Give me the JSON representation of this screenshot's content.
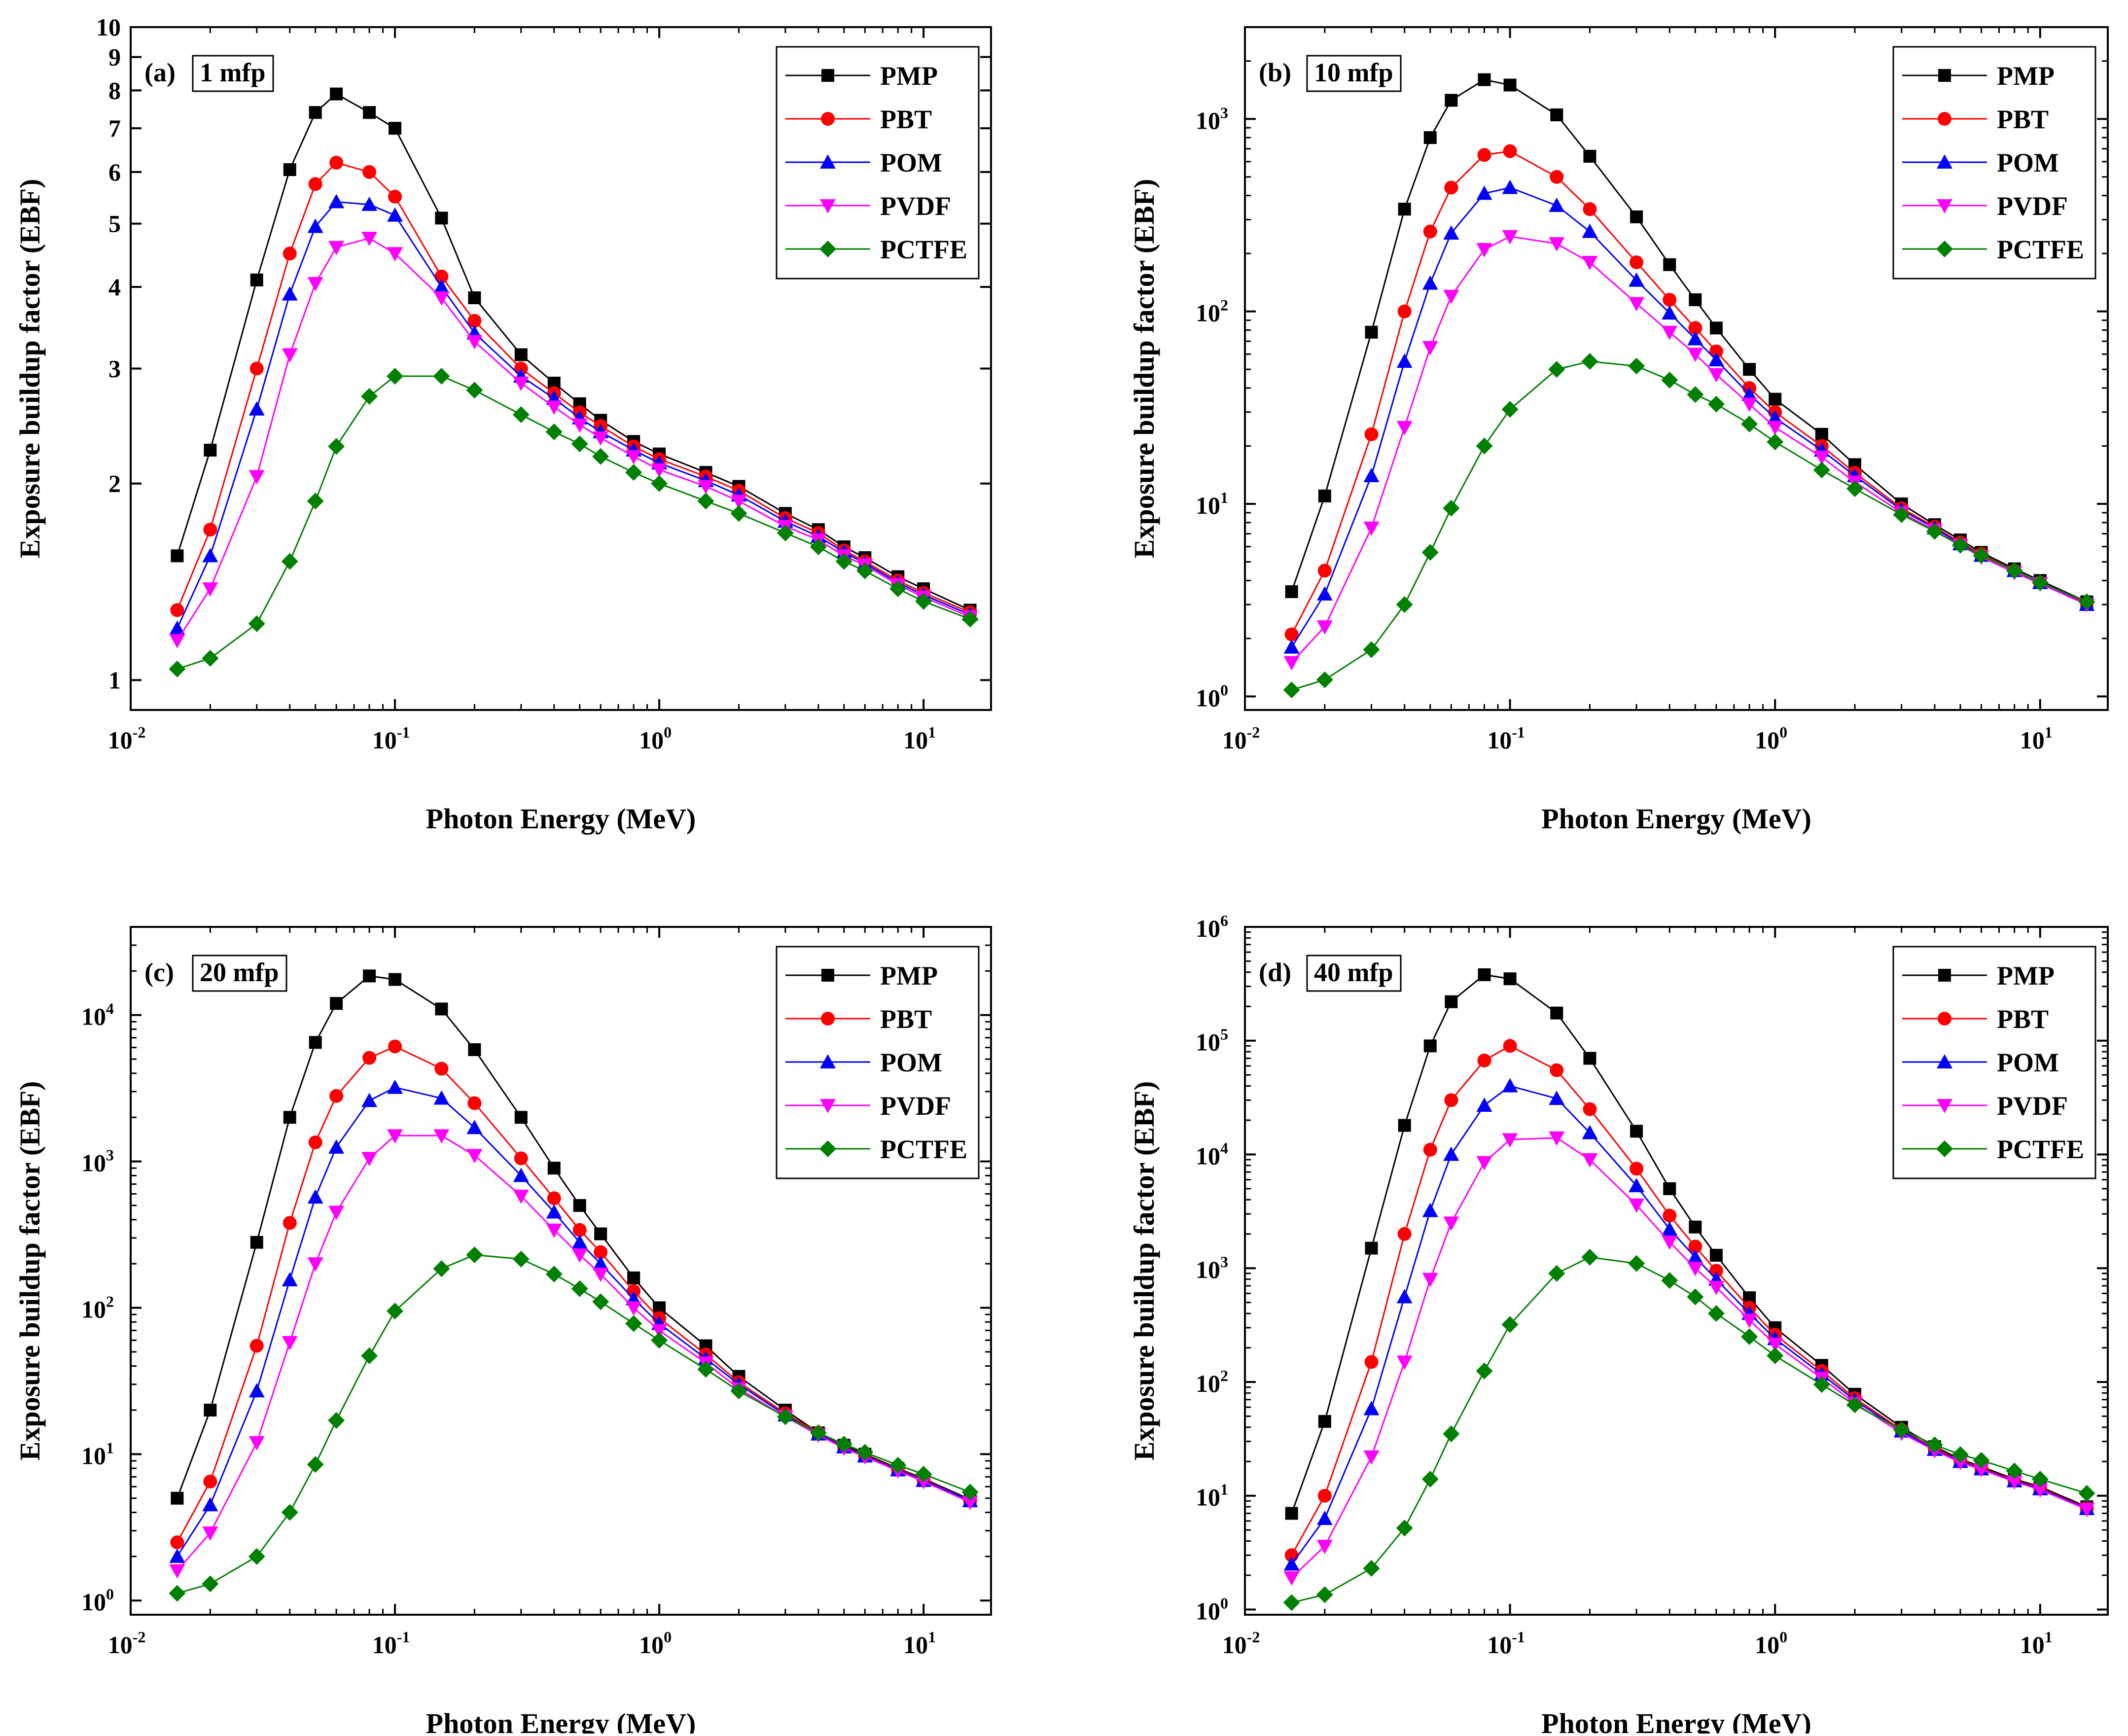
{
  "figure": {
    "x_axis_label": "Photon Energy (MeV)",
    "y_axis_label": "Exposure buildup factor (EBF)"
  },
  "chart_data": [
    {
      "type": "line",
      "panel_letter": "(a)",
      "panel_depth": "1 mfp",
      "x_scale": "log",
      "y_scale": "log",
      "xlim": [
        0.01,
        18
      ],
      "ylim": [
        0.9,
        10
      ],
      "x_ticks": [
        {
          "base": "10",
          "exp": "-2",
          "value": 0.01
        },
        {
          "base": "10",
          "exp": "-1",
          "value": 0.1
        },
        {
          "base": "10",
          "exp": "0",
          "value": 1
        },
        {
          "base": "10",
          "exp": "1",
          "value": 10
        }
      ],
      "y_ticks": [
        {
          "label": "1",
          "value": 1
        },
        {
          "label": "2",
          "value": 2
        },
        {
          "label": "3",
          "value": 3
        },
        {
          "label": "4",
          "value": 4
        },
        {
          "label": "5",
          "value": 5
        },
        {
          "label": "6",
          "value": 6
        },
        {
          "label": "7",
          "value": 7
        },
        {
          "label": "8",
          "value": 8
        },
        {
          "label": "9",
          "value": 9
        },
        {
          "label": "10",
          "value": 10
        }
      ],
      "legend_position": "top-right",
      "x": [
        0.015,
        0.02,
        0.03,
        0.04,
        0.05,
        0.06,
        0.08,
        0.1,
        0.15,
        0.2,
        0.3,
        0.4,
        0.5,
        0.6,
        0.8,
        1,
        1.5,
        2,
        3,
        4,
        5,
        6,
        8,
        10,
        15
      ],
      "series": [
        {
          "name": "PMP",
          "color": "#000000",
          "marker": "square",
          "values": [
            1.55,
            2.25,
            4.1,
            6.05,
            7.4,
            7.9,
            7.4,
            7.0,
            5.1,
            3.85,
            3.15,
            2.85,
            2.65,
            2.5,
            2.32,
            2.22,
            2.08,
            1.98,
            1.8,
            1.7,
            1.6,
            1.54,
            1.44,
            1.38,
            1.28
          ]
        },
        {
          "name": "PBT",
          "color": "#ff0000",
          "marker": "circle",
          "values": [
            1.28,
            1.7,
            3.0,
            4.5,
            5.75,
            6.2,
            6.0,
            5.5,
            4.15,
            3.55,
            3.0,
            2.75,
            2.57,
            2.45,
            2.28,
            2.18,
            2.05,
            1.95,
            1.77,
            1.68,
            1.58,
            1.52,
            1.42,
            1.36,
            1.27
          ]
        },
        {
          "name": "POM",
          "color": "#0000ff",
          "marker": "triangle-up",
          "values": [
            1.2,
            1.55,
            2.6,
            3.9,
            4.95,
            5.4,
            5.35,
            5.15,
            4.0,
            3.4,
            2.92,
            2.7,
            2.52,
            2.4,
            2.25,
            2.15,
            2.02,
            1.92,
            1.75,
            1.66,
            1.57,
            1.51,
            1.41,
            1.35,
            1.26
          ]
        },
        {
          "name": "PVDF",
          "color": "#ff00ff",
          "marker": "triangle-down",
          "values": [
            1.15,
            1.38,
            2.05,
            3.15,
            4.05,
            4.6,
            4.75,
            4.5,
            3.85,
            3.3,
            2.85,
            2.62,
            2.46,
            2.35,
            2.2,
            2.1,
            1.98,
            1.88,
            1.72,
            1.64,
            1.55,
            1.5,
            1.4,
            1.34,
            1.25
          ]
        },
        {
          "name": "PCTFE",
          "color": "#008000",
          "marker": "diamond",
          "values": [
            1.04,
            1.08,
            1.22,
            1.52,
            1.88,
            2.28,
            2.72,
            2.92,
            2.92,
            2.78,
            2.55,
            2.4,
            2.3,
            2.2,
            2.08,
            2.0,
            1.88,
            1.8,
            1.68,
            1.6,
            1.52,
            1.47,
            1.38,
            1.32,
            1.24
          ]
        }
      ]
    },
    {
      "type": "line",
      "panel_letter": "(b)",
      "panel_depth": "10 mfp",
      "x_scale": "log",
      "y_scale": "log",
      "xlim": [
        0.01,
        18
      ],
      "ylim": [
        0.85,
        3000
      ],
      "x_ticks": [
        {
          "base": "10",
          "exp": "-2",
          "value": 0.01
        },
        {
          "base": "10",
          "exp": "-1",
          "value": 0.1
        },
        {
          "base": "10",
          "exp": "0",
          "value": 1
        },
        {
          "base": "10",
          "exp": "1",
          "value": 10
        }
      ],
      "y_ticks": [
        {
          "base": "10",
          "exp": "0",
          "value": 1
        },
        {
          "base": "10",
          "exp": "1",
          "value": 10
        },
        {
          "base": "10",
          "exp": "2",
          "value": 100
        },
        {
          "base": "10",
          "exp": "3",
          "value": 1000
        }
      ],
      "legend_position": "top-right",
      "x": [
        0.015,
        0.02,
        0.03,
        0.04,
        0.05,
        0.06,
        0.08,
        0.1,
        0.15,
        0.2,
        0.3,
        0.4,
        0.5,
        0.6,
        0.8,
        1,
        1.5,
        2,
        3,
        4,
        5,
        6,
        8,
        10,
        15
      ],
      "series": [
        {
          "name": "PMP",
          "color": "#000000",
          "marker": "square",
          "values": [
            3.5,
            11,
            78,
            340,
            800,
            1250,
            1600,
            1500,
            1050,
            640,
            310,
            175,
            115,
            82,
            50,
            35,
            23,
            16,
            10,
            7.8,
            6.5,
            5.6,
            4.6,
            4.0,
            3.1
          ]
        },
        {
          "name": "PBT",
          "color": "#ff0000",
          "marker": "circle",
          "values": [
            2.1,
            4.5,
            23,
            100,
            260,
            440,
            650,
            680,
            500,
            340,
            180,
            115,
            82,
            62,
            40,
            30,
            20,
            14.5,
            9.5,
            7.6,
            6.3,
            5.5,
            4.5,
            3.9,
            3.05
          ]
        },
        {
          "name": "POM",
          "color": "#0000ff",
          "marker": "triangle-up",
          "values": [
            1.8,
            3.4,
            14,
            55,
            140,
            255,
            410,
            440,
            355,
            260,
            145,
            98,
            72,
            56,
            37,
            28,
            19,
            14,
            9.3,
            7.5,
            6.2,
            5.4,
            4.5,
            3.9,
            3.0
          ]
        },
        {
          "name": "PVDF",
          "color": "#ff00ff",
          "marker": "triangle-down",
          "values": [
            1.5,
            2.3,
            7.5,
            25,
            65,
            120,
            210,
            245,
            225,
            180,
            110,
            78,
            60,
            47,
            33,
            25,
            17.5,
            13,
            9.0,
            7.3,
            6.1,
            5.3,
            4.4,
            3.85,
            3.0
          ]
        },
        {
          "name": "PCTFE",
          "color": "#008000",
          "marker": "diamond",
          "values": [
            1.08,
            1.22,
            1.75,
            3.0,
            5.6,
            9.5,
            20,
            31,
            50,
            55,
            52,
            44,
            37,
            33,
            26,
            21,
            15,
            12,
            8.8,
            7.2,
            6.1,
            5.4,
            4.5,
            3.9,
            3.1
          ]
        }
      ]
    },
    {
      "type": "line",
      "panel_letter": "(c)",
      "panel_depth": "20 mfp",
      "x_scale": "log",
      "y_scale": "log",
      "xlim": [
        0.01,
        18
      ],
      "ylim": [
        0.8,
        40000
      ],
      "x_ticks": [
        {
          "base": "10",
          "exp": "-2",
          "value": 0.01
        },
        {
          "base": "10",
          "exp": "-1",
          "value": 0.1
        },
        {
          "base": "10",
          "exp": "0",
          "value": 1
        },
        {
          "base": "10",
          "exp": "1",
          "value": 10
        }
      ],
      "y_ticks": [
        {
          "base": "10",
          "exp": "0",
          "value": 1
        },
        {
          "base": "10",
          "exp": "1",
          "value": 10
        },
        {
          "base": "10",
          "exp": "2",
          "value": 100
        },
        {
          "base": "10",
          "exp": "3",
          "value": 1000
        },
        {
          "base": "10",
          "exp": "4",
          "value": 10000
        }
      ],
      "legend_position": "top-right",
      "x": [
        0.015,
        0.02,
        0.03,
        0.04,
        0.05,
        0.06,
        0.08,
        0.1,
        0.15,
        0.2,
        0.3,
        0.4,
        0.5,
        0.6,
        0.8,
        1,
        1.5,
        2,
        3,
        4,
        5,
        6,
        8,
        10,
        15
      ],
      "series": [
        {
          "name": "PMP",
          "color": "#000000",
          "marker": "square",
          "values": [
            5,
            20,
            280,
            2000,
            6500,
            12000,
            18500,
            17500,
            11000,
            5800,
            2000,
            900,
            500,
            320,
            160,
            100,
            55,
            34,
            20,
            14,
            11.5,
            10,
            8,
            6.8,
            4.9
          ]
        },
        {
          "name": "PBT",
          "color": "#ff0000",
          "marker": "circle",
          "values": [
            2.5,
            6.5,
            55,
            380,
            1350,
            2800,
            5100,
            6100,
            4300,
            2500,
            1050,
            560,
            340,
            240,
            130,
            85,
            48,
            31,
            19,
            14,
            11.3,
            9.8,
            7.9,
            6.7,
            4.8
          ]
        },
        {
          "name": "POM",
          "color": "#0000ff",
          "marker": "triangle-up",
          "values": [
            2.0,
            4.5,
            27,
            155,
            570,
            1250,
            2600,
            3200,
            2700,
            1700,
            800,
            450,
            280,
            200,
            115,
            78,
            45,
            30,
            18.5,
            13.7,
            11.2,
            9.7,
            7.8,
            6.6,
            4.8
          ]
        },
        {
          "name": "PVDF",
          "color": "#ff00ff",
          "marker": "triangle-down",
          "values": [
            1.6,
            2.9,
            12,
            58,
            200,
            450,
            1050,
            1500,
            1500,
            1100,
            580,
            340,
            230,
            170,
            100,
            70,
            42,
            28,
            18,
            13.5,
            11,
            9.6,
            7.7,
            6.5,
            4.7
          ]
        },
        {
          "name": "PCTFE",
          "color": "#008000",
          "marker": "diamond",
          "values": [
            1.12,
            1.3,
            2.0,
            4.0,
            8.5,
            17,
            47,
            95,
            185,
            230,
            215,
            170,
            135,
            110,
            78,
            60,
            38,
            27,
            18,
            14,
            11.7,
            10.3,
            8.4,
            7.3,
            5.5
          ]
        }
      ]
    },
    {
      "type": "line",
      "panel_letter": "(d)",
      "panel_depth": "40 mfp",
      "x_scale": "log",
      "y_scale": "log",
      "xlim": [
        0.01,
        18
      ],
      "ylim": [
        0.9,
        1000000
      ],
      "x_ticks": [
        {
          "base": "10",
          "exp": "-2",
          "value": 0.01
        },
        {
          "base": "10",
          "exp": "-1",
          "value": 0.1
        },
        {
          "base": "10",
          "exp": "0",
          "value": 1
        },
        {
          "base": "10",
          "exp": "1",
          "value": 10
        }
      ],
      "y_ticks": [
        {
          "base": "10",
          "exp": "0",
          "value": 1
        },
        {
          "base": "10",
          "exp": "1",
          "value": 10
        },
        {
          "base": "10",
          "exp": "2",
          "value": 100
        },
        {
          "base": "10",
          "exp": "3",
          "value": 1000
        },
        {
          "base": "10",
          "exp": "4",
          "value": 10000
        },
        {
          "base": "10",
          "exp": "5",
          "value": 100000
        },
        {
          "base": "10",
          "exp": "6",
          "value": 1000000
        }
      ],
      "legend_position": "top-right",
      "x": [
        0.015,
        0.02,
        0.03,
        0.04,
        0.05,
        0.06,
        0.08,
        0.1,
        0.15,
        0.2,
        0.3,
        0.4,
        0.5,
        0.6,
        0.8,
        1,
        1.5,
        2,
        3,
        4,
        5,
        6,
        8,
        10,
        15
      ],
      "series": [
        {
          "name": "PMP",
          "color": "#000000",
          "marker": "square",
          "values": [
            7,
            45,
            1500,
            18000,
            90000,
            220000,
            380000,
            350000,
            175000,
            70000,
            16000,
            5000,
            2300,
            1300,
            550,
            300,
            140,
            78,
            40,
            27,
            21,
            18,
            14,
            12,
            8
          ]
        },
        {
          "name": "PBT",
          "color": "#ff0000",
          "marker": "circle",
          "values": [
            3,
            10,
            150,
            2000,
            11000,
            30000,
            67000,
            90000,
            55000,
            25000,
            7500,
            2900,
            1550,
            950,
            450,
            260,
            125,
            72,
            38,
            26,
            20.5,
            17.5,
            13.7,
            11.7,
            7.8
          ]
        },
        {
          "name": "POM",
          "color": "#0000ff",
          "marker": "triangle-up",
          "values": [
            2.5,
            6.3,
            58,
            560,
            3200,
            10000,
            27000,
            40000,
            31000,
            15500,
            5300,
            2200,
            1250,
            800,
            400,
            240,
            117,
            69,
            37,
            25.5,
            20,
            17.2,
            13.5,
            11.5,
            7.7
          ]
        },
        {
          "name": "PVDF",
          "color": "#ff00ff",
          "marker": "triangle-down",
          "values": [
            1.9,
            3.6,
            22,
            150,
            800,
            2500,
            8500,
            13500,
            14000,
            9000,
            3600,
            1700,
            1000,
            680,
            350,
            215,
            108,
            65,
            35.5,
            25,
            19.7,
            17,
            13.3,
            11.3,
            7.6
          ]
        },
        {
          "name": "PCTFE",
          "color": "#008000",
          "marker": "diamond",
          "values": [
            1.15,
            1.35,
            2.3,
            5.2,
            14,
            35,
            125,
            320,
            900,
            1250,
            1100,
            780,
            560,
            400,
            250,
            170,
            95,
            63,
            38,
            28,
            23,
            20.5,
            16.5,
            14,
            10.5
          ]
        }
      ]
    }
  ]
}
